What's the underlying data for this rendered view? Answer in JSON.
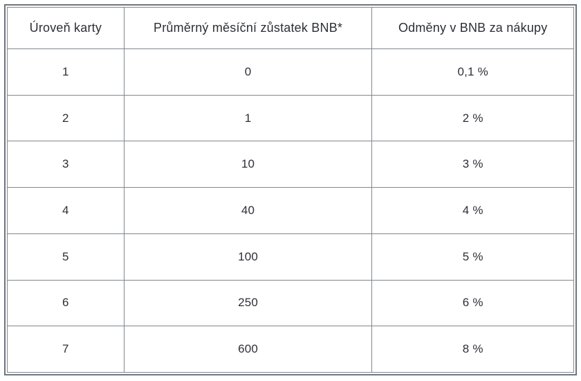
{
  "chart_data": {
    "type": "table",
    "title": "",
    "columns": [
      "Úroveň karty",
      "Průměrný měsíční zůstatek BNB*",
      "Odměny v BNB za nákupy"
    ],
    "rows": [
      [
        "1",
        "0",
        "0,1 %"
      ],
      [
        "2",
        "1",
        "2 %"
      ],
      [
        "3",
        "10",
        "3 %"
      ],
      [
        "4",
        "40",
        "4 %"
      ],
      [
        "5",
        "100",
        "5 %"
      ],
      [
        "6",
        "250",
        "6 %"
      ],
      [
        "7",
        "600",
        "8 %"
      ]
    ]
  },
  "colors": {
    "outer_border": "#6e757d",
    "cell_border": "#81868c",
    "text": "#2c2f36",
    "background": "#ffffff"
  }
}
